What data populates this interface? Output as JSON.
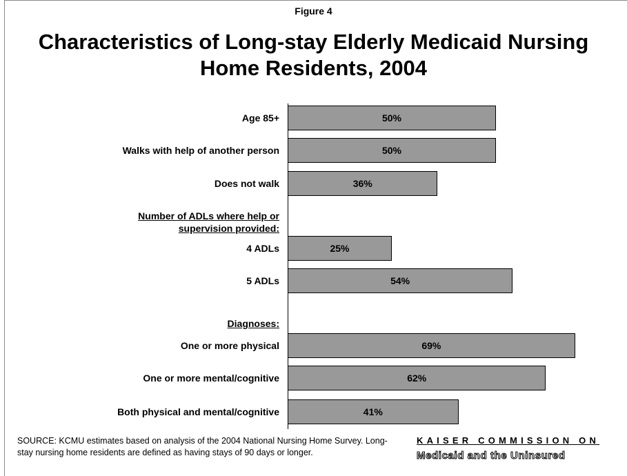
{
  "chart_data": {
    "type": "bar",
    "orientation": "horizontal",
    "figure_label": "Figure 4",
    "title": "Characteristics of Long-stay Elderly Medicaid Nursing Home Residents, 2004",
    "categories": [
      "Age 85+",
      "Walks with help of another person",
      "Does not walk",
      "Number of ADLs where help or supervision provided:",
      "4 ADLs",
      "5 ADLs",
      "Diagnoses:",
      "One or more physical",
      "One or more mental/cognitive",
      "Both physical and mental/cognitive"
    ],
    "values": [
      50,
      50,
      36,
      null,
      25,
      54,
      null,
      69,
      62,
      41
    ],
    "value_labels": [
      "50%",
      "50%",
      "36%",
      null,
      "25%",
      "54%",
      null,
      "69%",
      "62%",
      "41%"
    ],
    "color": "#999999",
    "source": "SOURCE: KCMU estimates based on analysis of the 2004 National Nursing Home Survey. Long-stay nursing home residents are defined as having stays of 90 days or longer.",
    "logo": {
      "line1": "KAISER COMMISSION ON",
      "line2": "Medicaid and the Uninsured"
    }
  }
}
